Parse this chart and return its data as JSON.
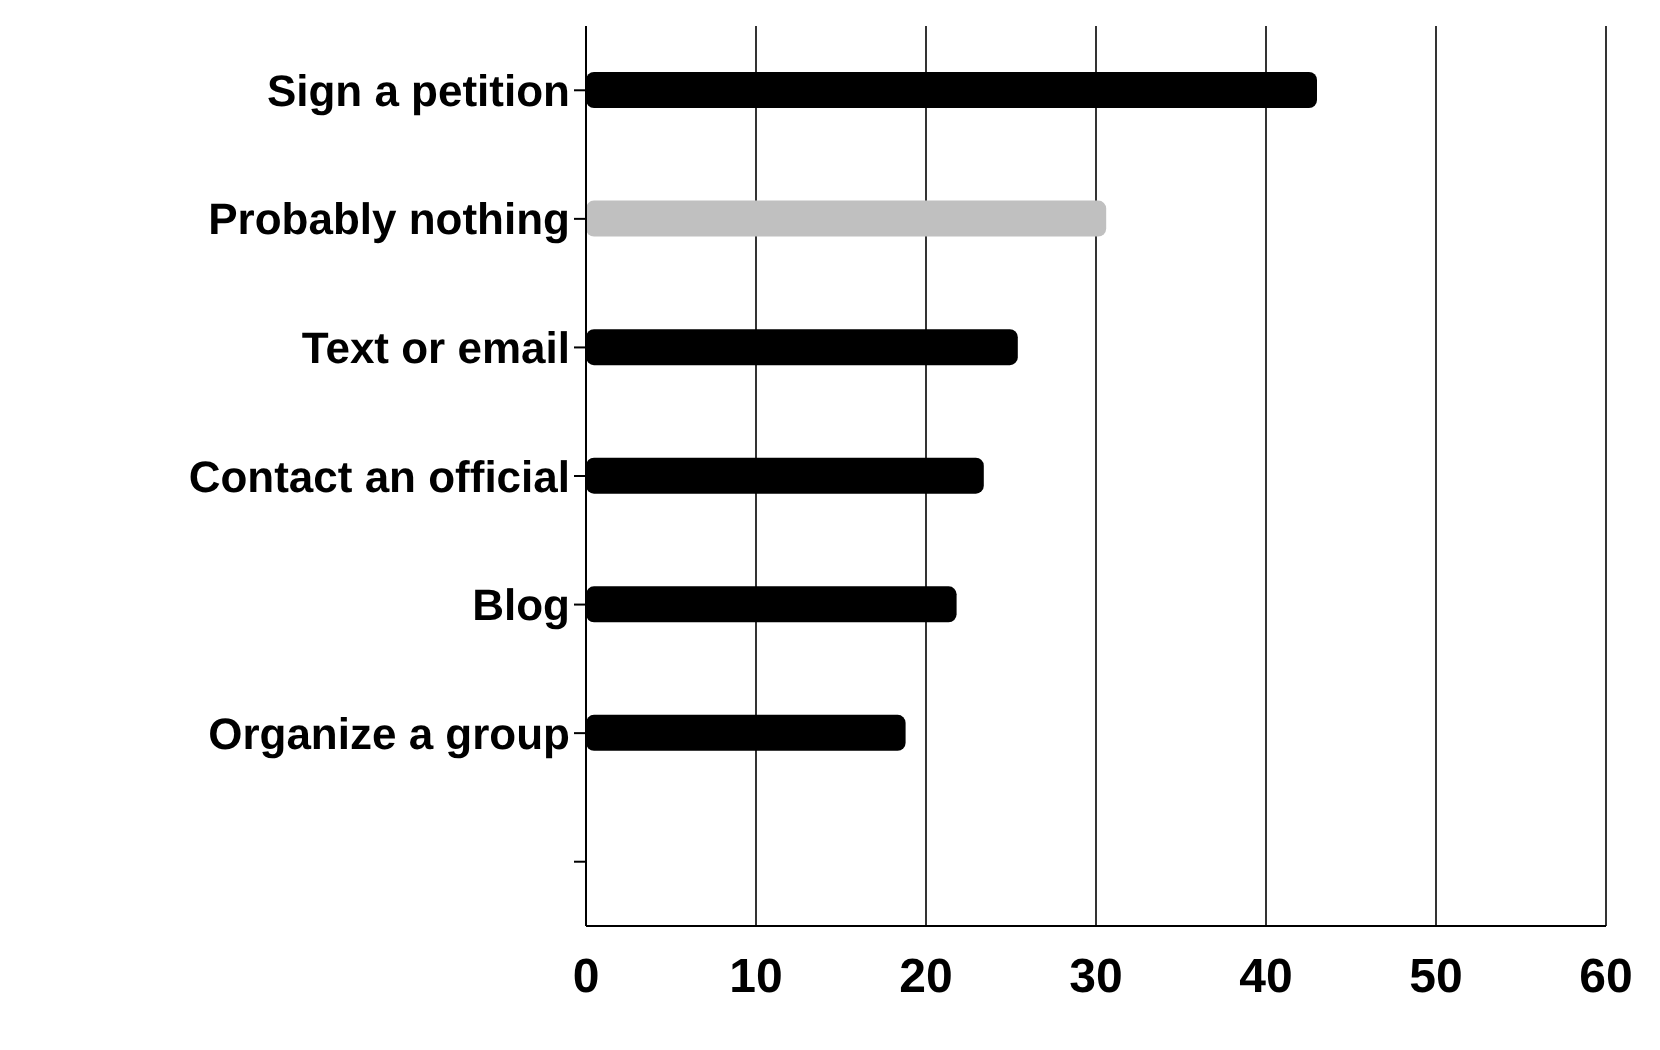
{
  "chart_data": {
    "type": "bar",
    "orientation": "horizontal",
    "categories": [
      "Sign a petition",
      "Probably nothing",
      "Text or email",
      "Contact an official",
      "Blog",
      "Organize a group",
      null
    ],
    "values": [
      43,
      30.6,
      25.4,
      23.4,
      21.8,
      18.8,
      null
    ],
    "colors": [
      "#000000",
      "#c0c0c0",
      "#000000",
      "#000000",
      "#000000",
      "#000000",
      "#000000"
    ],
    "xlim": [
      0,
      60
    ],
    "xticks": [
      0,
      10,
      20,
      30,
      40,
      50,
      60
    ],
    "grid": "x"
  }
}
